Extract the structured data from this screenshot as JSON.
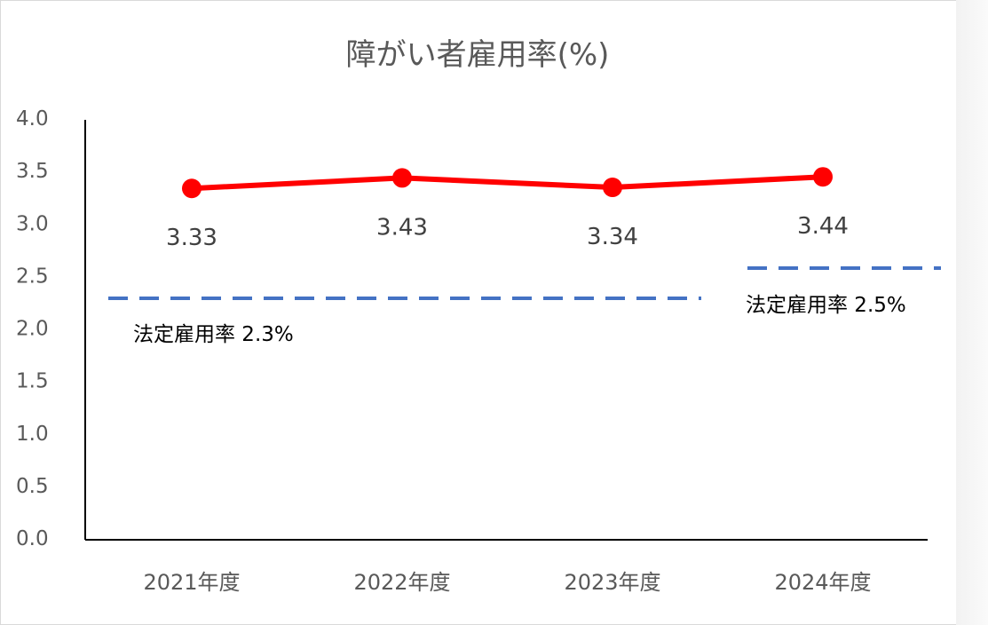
{
  "chart_data": {
    "type": "line",
    "title": "障がい者雇用率(%)",
    "categories": [
      "2021年度",
      "2022年度",
      "2023年度",
      "2024年度"
    ],
    "series": [
      {
        "values": [
          3.33,
          3.43,
          3.34,
          3.44
        ],
        "color": "#ff0000"
      }
    ],
    "data_labels": [
      "3.33",
      "3.43",
      "3.34",
      "3.44"
    ],
    "ylim": [
      0,
      4.0
    ],
    "yticks": [
      "0.0",
      "0.5",
      "1.0",
      "1.5",
      "2.0",
      "2.5",
      "3.0",
      "3.5",
      "4.0"
    ],
    "grid": false,
    "reference_lines": [
      {
        "label": "法定雇用率 2.3%",
        "value": 2.3,
        "from_category": 0,
        "to_category": 2,
        "color": "#4472c4"
      },
      {
        "label": "法定雇用率 2.5%",
        "value": 2.5,
        "from_category": 3,
        "to_category": 3,
        "color": "#4472c4"
      }
    ]
  }
}
